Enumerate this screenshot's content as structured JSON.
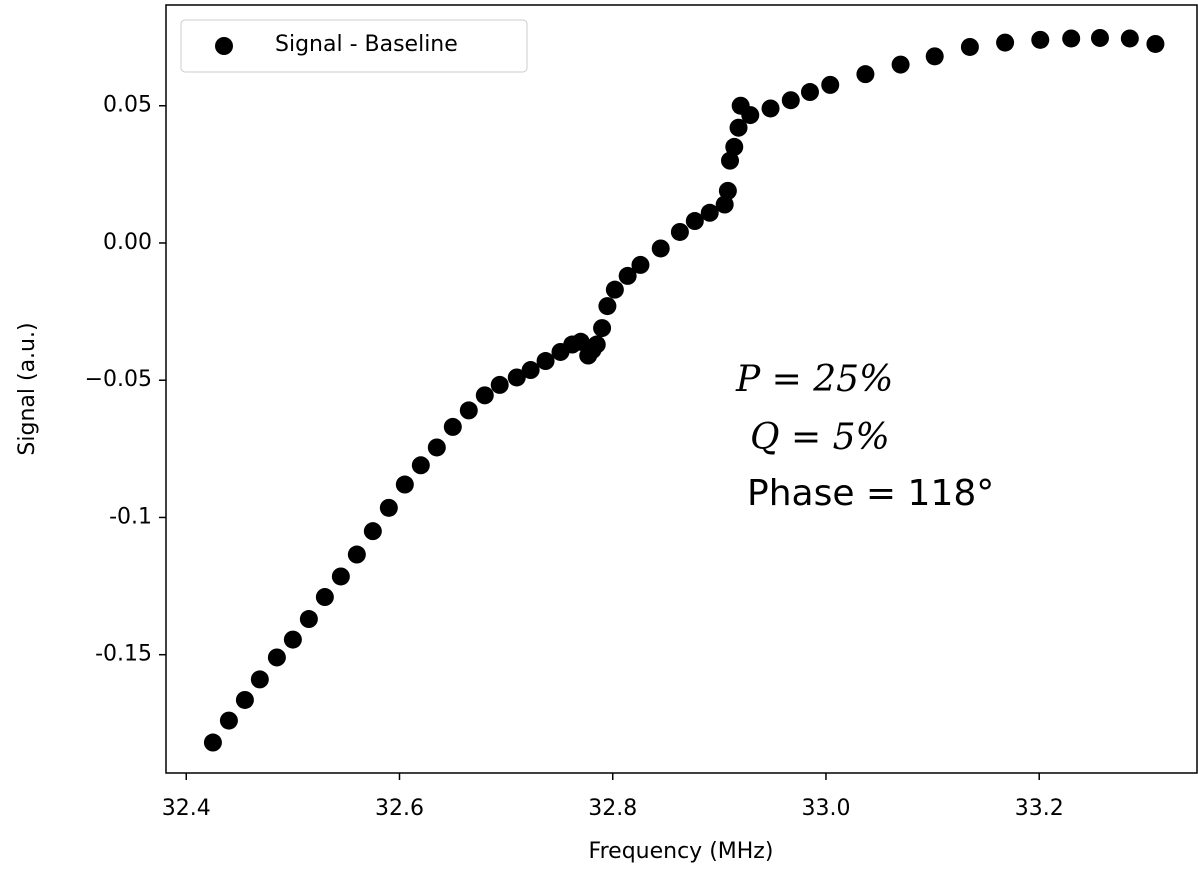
{
  "chart_data": {
    "type": "scatter",
    "xlabel": "Frequency (MHz)",
    "ylabel": "Signal (a.u.)",
    "annotations": [
      "P = 25%",
      "Q = 5%",
      "Phase = 118°"
    ],
    "xlim": [
      32.381,
      33.348
    ],
    "ylim": [
      -0.1931,
      0.0867
    ],
    "xticks": [
      32.4,
      32.6,
      32.8,
      {
        "value": 33.0,
        "label": "33.0"
      },
      33.2
    ],
    "yticks": [
      -0.15,
      -0.1,
      {
        "value": -0.05,
        "label": "−0.05"
      },
      {
        "value": 0,
        "label": "0.00"
      },
      0.05
    ],
    "legend": "upper left",
    "series": [
      {
        "name": "Signal - Baseline",
        "color": "#000000",
        "x": [
          32.425,
          32.44,
          32.455,
          32.469,
          32.485,
          32.5,
          32.515,
          32.53,
          32.545,
          32.56,
          32.575,
          32.59,
          32.605,
          32.62,
          32.635,
          32.65,
          32.665,
          32.68,
          32.694,
          32.71,
          32.723,
          32.737,
          32.751,
          32.762,
          32.77,
          32.777,
          32.781,
          32.785,
          32.79,
          32.795,
          32.802,
          32.814,
          32.826,
          32.845,
          32.863,
          32.877,
          32.891,
          32.905,
          32.908,
          32.91,
          32.914,
          32.918,
          32.92,
          32.929,
          32.948,
          32.967,
          32.985,
          33.004,
          33.037,
          33.07,
          33.102,
          33.135,
          33.168,
          33.201,
          33.23,
          33.257,
          33.285,
          33.309
        ],
        "values": [
          -0.182,
          -0.174,
          -0.1665,
          -0.159,
          -0.151,
          -0.1445,
          -0.137,
          -0.129,
          -0.1215,
          -0.1135,
          -0.105,
          -0.0965,
          -0.088,
          -0.081,
          -0.0745,
          -0.067,
          -0.061,
          -0.0555,
          -0.0517,
          -0.049,
          -0.0463,
          -0.043,
          -0.0397,
          -0.037,
          -0.036,
          -0.041,
          -0.039,
          -0.037,
          -0.031,
          -0.023,
          -0.017,
          -0.012,
          -0.008,
          -0.002,
          0.004,
          0.008,
          0.011,
          0.014,
          0.019,
          0.03,
          0.035,
          0.042,
          0.05,
          0.0466,
          0.049,
          0.052,
          0.055,
          0.0576,
          0.0615,
          0.065,
          0.068,
          0.0714,
          0.073,
          0.074,
          0.0745,
          0.0747,
          0.0745,
          0.0725
        ]
      }
    ]
  }
}
